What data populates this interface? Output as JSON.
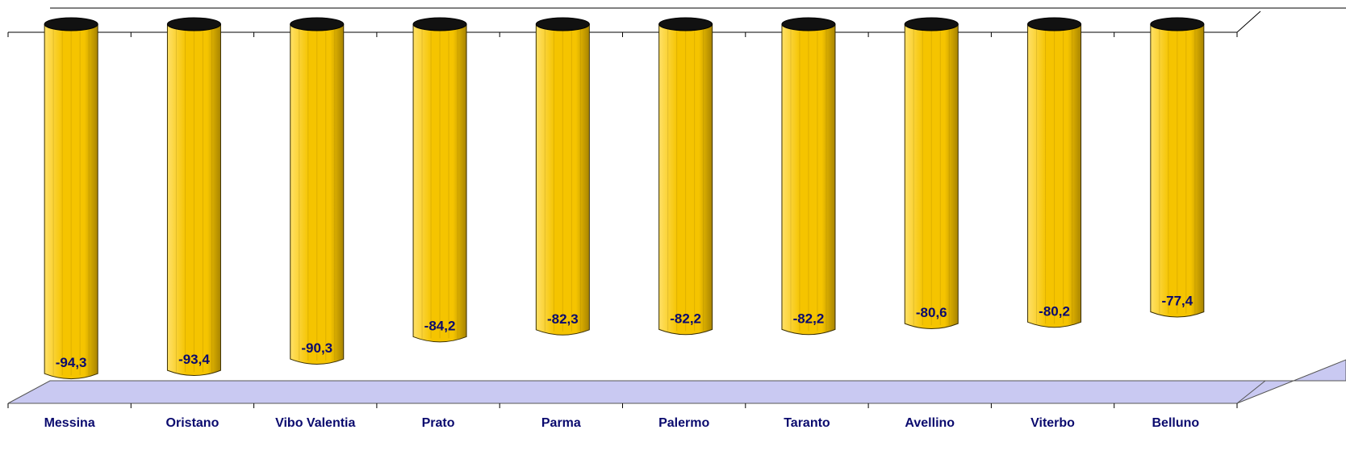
{
  "chart_data": {
    "type": "bar",
    "orientation": "vertical",
    "style": "3d-cylinder",
    "categories": [
      "Messina",
      "Oristano",
      "Vibo Valentia",
      "Prato",
      "Parma",
      "Palermo",
      "Taranto",
      "Avellino",
      "Viterbo",
      "Belluno"
    ],
    "values": [
      -94.3,
      -93.4,
      -90.3,
      -84.2,
      -82.3,
      -82.2,
      -82.2,
      -80.6,
      -80.2,
      -77.4
    ],
    "data_labels": [
      "-94,3",
      "-93,4",
      "-90,3",
      "-84,2",
      "-82,3",
      "-82,2",
      "-82,2",
      "-80,6",
      "-80,2",
      "-77,4"
    ],
    "title": "",
    "xlabel": "",
    "ylabel": "",
    "ylim": [
      -100,
      0
    ],
    "grid": false,
    "legend": "none",
    "colors": {
      "bar": "#F5C400",
      "bar_light": "#FFE066",
      "bar_dark": "#A88400",
      "bar_top": "#111111",
      "data_label": "#0A0A6E",
      "category_label": "#0A0A6E",
      "floor": "#C9C9F2",
      "axis": "#000000"
    }
  }
}
